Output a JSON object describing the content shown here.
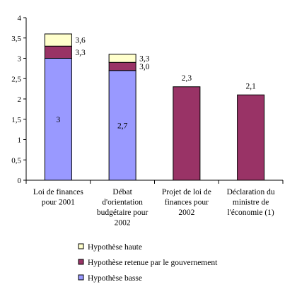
{
  "chart_data": {
    "type": "bar",
    "stacked": true,
    "categories": [
      [
        "Loi de finances",
        "pour 2001"
      ],
      [
        "Débat",
        "d'orientation",
        "budgétaire pour",
        "2002"
      ],
      [
        "Projet de loi de",
        "finances pour",
        "2002"
      ],
      [
        "Déclaration du",
        "ministre de",
        "l'économie (1)"
      ]
    ],
    "series": [
      {
        "name": "Hypothèse basse",
        "color": "#9999ff",
        "values": [
          3.0,
          2.7,
          0,
          0
        ]
      },
      {
        "name": "Hypothèse retenue par le gouvernement",
        "color": "#993366",
        "values": [
          0.3,
          0.2,
          2.3,
          2.1
        ]
      },
      {
        "name": "Hypothèse haute",
        "color": "#ffffcc",
        "values": [
          0.3,
          0.2,
          0,
          0
        ]
      }
    ],
    "ylim": [
      0,
      4
    ],
    "ytick_labels": [
      "0",
      "0,5",
      "1",
      "1,5",
      "2",
      "2,5",
      "3",
      "3,5",
      "4"
    ],
    "data_labels": {
      "inside": [
        "3",
        "2,7",
        "",
        ""
      ],
      "upper": [
        "3,6",
        "3,3",
        "",
        ""
      ],
      "mid": [
        "3,3",
        "3,0",
        "",
        ""
      ],
      "top": [
        "",
        "",
        "2,3",
        "2,1"
      ]
    },
    "legend_order": [
      "Hypothèse haute",
      "Hypothèse retenue par le gouvernement",
      "Hypothèse basse"
    ],
    "legend_position": "bottom",
    "grid": false
  }
}
